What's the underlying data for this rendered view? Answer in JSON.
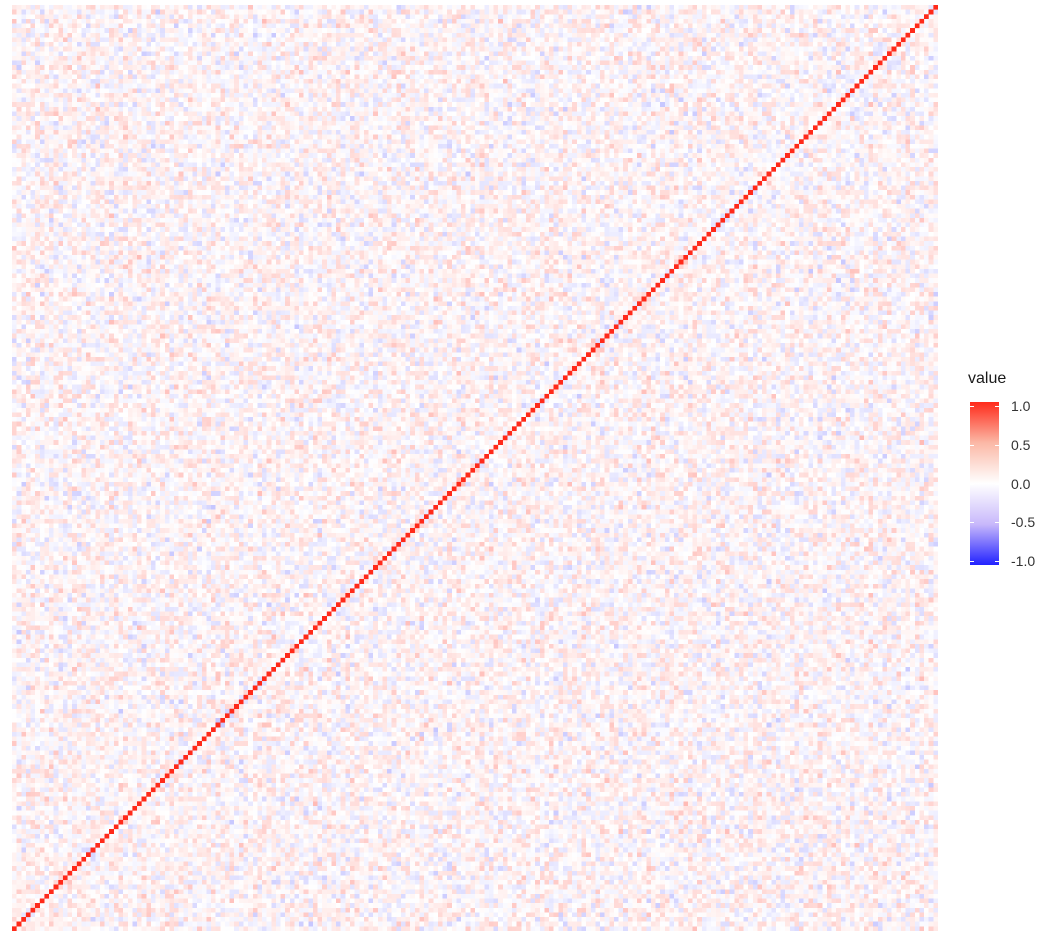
{
  "chart_data": {
    "type": "heatmap",
    "description_of_values": "symmetric square matrix; diagonal cells = 1.0, off-diagonal cells small random values near 0",
    "matrix_size": 200,
    "diagonal_value": 1.0,
    "off_diagonal_range": [
      -0.3,
      0.3
    ],
    "color_scale": {
      "min": -1.0,
      "max": 1.0,
      "low_color": "#2222ff",
      "mid_color": "#ffffff",
      "high_color": "#ff2a1a"
    },
    "legend": {
      "title": "value",
      "placement": "right",
      "breaks": [
        "1.0",
        "0.5",
        "0.0",
        "-0.5",
        "-1.0"
      ]
    },
    "diagonal_orientation": "bottom-left to top-right",
    "xlabel": "",
    "ylabel": "",
    "title": ""
  }
}
